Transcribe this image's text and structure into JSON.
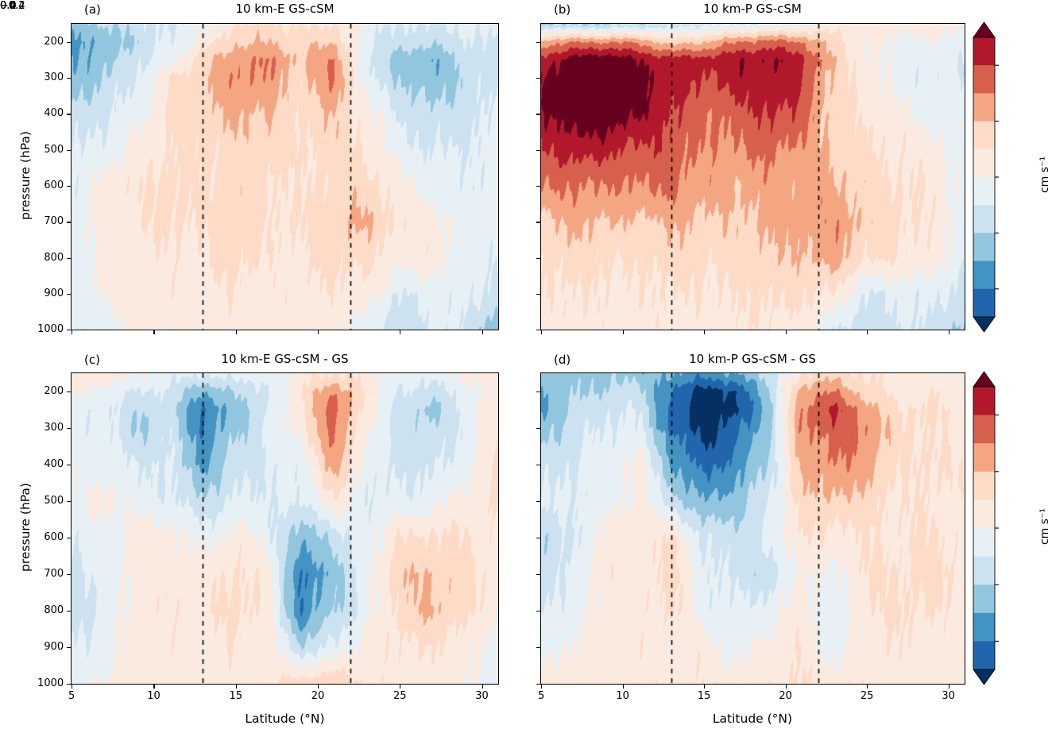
{
  "figure": {
    "background": "#ffffff",
    "xlabel": "Latitude (°N)",
    "ylabel": "pressure (hPa)"
  },
  "chart_data": {
    "type": "heatmap",
    "description": "Four filled-contour latitude-pressure cross sections of vertical velocity (cm/s), RdBu_r colormap, levels every 0.1 from -0.5 to 0.5 with extend=both",
    "xlabel": "Latitude (°N)",
    "ylabel": "pressure (hPa)",
    "xlim": [
      5,
      31
    ],
    "ylim_pressure": [
      150,
      1000
    ],
    "xticks": {
      "values": [
        5,
        10,
        15,
        20,
        25,
        30
      ],
      "labels": [
        "5",
        "10",
        "15",
        "20",
        "25",
        "30"
      ]
    },
    "yticks": {
      "values": [
        200,
        300,
        400,
        500,
        600,
        700,
        800,
        900,
        1000
      ],
      "labels": [
        "200",
        "300",
        "400",
        "500",
        "600",
        "700",
        "800",
        "900",
        "1000"
      ]
    },
    "levels": [
      -0.5,
      -0.4,
      -0.3,
      -0.2,
      -0.1,
      0.0,
      0.1,
      0.2,
      0.3,
      0.4,
      0.5
    ],
    "colors": {
      "under": "#053061",
      "bins": [
        "#2166ac",
        "#4393c3",
        "#92c5de",
        "#cde2f0",
        "#e7f0f5",
        "#fbeae0",
        "#fddbc7",
        "#f4a582",
        "#d6604d",
        "#b2182b"
      ],
      "over": "#67001f",
      "dashed_line": "#000000"
    },
    "colorbar": {
      "label": "cm s⁻¹",
      "tick_values": [
        0.4,
        0.2,
        0.0,
        -0.2,
        -0.4
      ],
      "tick_labels": [
        "0.4",
        "0.2",
        "0.0",
        "−0.2",
        "−0.4"
      ]
    },
    "grid_x_lats": [
      5,
      7,
      9,
      11,
      13,
      15,
      17,
      19,
      21,
      23,
      25,
      27,
      29,
      31
    ],
    "grid_y_pressures": [
      150,
      200,
      250,
      300,
      400,
      500,
      600,
      700,
      800,
      900,
      1000
    ],
    "panels": [
      {
        "id": "a",
        "label": "(a)",
        "title": "10 km-E GS-cSM",
        "dashed_lines_lat": [
          13,
          22
        ],
        "show_x_tick_labels": false,
        "show_y_tick_labels": true,
        "grid": [
          [
            -0.25,
            -0.2,
            -0.15,
            -0.1,
            -0.05,
            0.1,
            0.12,
            0.08,
            0.1,
            -0.05,
            -0.1,
            -0.1,
            -0.08,
            -0.05
          ],
          [
            -0.3,
            -0.28,
            -0.18,
            -0.08,
            0.05,
            0.18,
            0.2,
            0.15,
            0.2,
            -0.08,
            -0.15,
            -0.18,
            -0.12,
            -0.1
          ],
          [
            -0.3,
            -0.25,
            -0.12,
            -0.05,
            0.15,
            0.28,
            0.3,
            0.18,
            0.3,
            -0.1,
            -0.25,
            -0.3,
            -0.15,
            -0.12
          ],
          [
            -0.28,
            -0.2,
            -0.1,
            0.1,
            0.18,
            0.3,
            0.28,
            0.15,
            0.32,
            -0.08,
            -0.2,
            -0.28,
            -0.18,
            -0.1
          ],
          [
            -0.18,
            -0.12,
            -0.05,
            0.12,
            0.15,
            0.22,
            0.2,
            0.12,
            0.2,
            0.05,
            -0.12,
            -0.18,
            -0.15,
            -0.08
          ],
          [
            -0.12,
            -0.05,
            0.05,
            0.1,
            0.12,
            0.15,
            0.15,
            0.1,
            0.15,
            0.08,
            -0.05,
            -0.1,
            -0.1,
            -0.05
          ],
          [
            -0.08,
            0.05,
            0.08,
            0.15,
            0.1,
            0.15,
            0.12,
            0.08,
            0.15,
            0.15,
            0.05,
            -0.05,
            -0.08,
            -0.05
          ],
          [
            -0.05,
            0.05,
            0.08,
            0.12,
            0.1,
            0.18,
            0.1,
            0.1,
            0.18,
            0.22,
            0.08,
            0.05,
            -0.05,
            -0.05
          ],
          [
            -0.05,
            0.05,
            0.05,
            0.08,
            0.08,
            0.15,
            0.08,
            0.08,
            0.15,
            0.12,
            0.05,
            0.05,
            -0.05,
            -0.08
          ],
          [
            -0.08,
            0.03,
            0.05,
            0.05,
            0.05,
            0.08,
            0.05,
            0.05,
            0.08,
            0.05,
            -0.1,
            -0.05,
            -0.05,
            -0.15
          ],
          [
            -0.1,
            -0.05,
            0.03,
            0.03,
            0.05,
            0.05,
            0.05,
            0.05,
            0.05,
            -0.05,
            -0.2,
            -0.08,
            -0.1,
            -0.3
          ]
        ]
      },
      {
        "id": "b",
        "label": "(b)",
        "title": "10 km-P GS-cSM",
        "dashed_lines_lat": [
          13,
          22
        ],
        "show_x_tick_labels": false,
        "show_y_tick_labels": false,
        "grid": [
          [
            -0.2,
            -0.22,
            -0.2,
            -0.18,
            -0.15,
            -0.12,
            -0.1,
            -0.08,
            -0.05,
            0.05,
            0.05,
            0.05,
            0.05,
            0.02
          ],
          [
            0.25,
            0.3,
            0.3,
            0.28,
            0.15,
            0.2,
            0.3,
            0.35,
            0.3,
            0.15,
            0.02,
            -0.02,
            -0.02,
            -0.05
          ],
          [
            0.45,
            0.55,
            0.6,
            0.5,
            0.45,
            0.45,
            0.48,
            0.5,
            0.45,
            0.18,
            0.02,
            -0.05,
            -0.05,
            -0.08
          ],
          [
            0.5,
            0.62,
            0.65,
            0.55,
            0.45,
            0.4,
            0.45,
            0.48,
            0.42,
            0.15,
            0.05,
            -0.05,
            -0.08,
            -0.08
          ],
          [
            0.48,
            0.58,
            0.6,
            0.5,
            0.42,
            0.3,
            0.35,
            0.42,
            0.35,
            0.15,
            0.08,
            0.02,
            -0.05,
            -0.05
          ],
          [
            0.38,
            0.45,
            0.42,
            0.38,
            0.38,
            0.28,
            0.3,
            0.32,
            0.28,
            0.18,
            0.12,
            0.08,
            0.05,
            -0.05
          ],
          [
            0.3,
            0.32,
            0.3,
            0.3,
            0.32,
            0.25,
            0.22,
            0.25,
            0.25,
            0.22,
            0.15,
            0.1,
            0.08,
            -0.05
          ],
          [
            0.18,
            0.22,
            0.2,
            0.18,
            0.22,
            0.18,
            0.18,
            0.22,
            0.25,
            0.28,
            0.18,
            0.12,
            0.08,
            -0.05
          ],
          [
            0.12,
            0.15,
            0.12,
            0.1,
            0.15,
            0.12,
            0.15,
            0.18,
            0.2,
            0.25,
            0.12,
            0.1,
            0.05,
            -0.08
          ],
          [
            0.08,
            0.1,
            0.08,
            0.08,
            0.1,
            0.08,
            0.1,
            0.12,
            0.12,
            0.08,
            -0.1,
            -0.08,
            -0.05,
            -0.15
          ],
          [
            0.05,
            0.08,
            0.05,
            0.05,
            0.08,
            0.05,
            0.08,
            0.08,
            0.05,
            -0.08,
            -0.18,
            -0.1,
            -0.12,
            -0.25
          ]
        ]
      },
      {
        "id": "c",
        "label": "(c)",
        "title": "10 km-E GS-cSM - GS",
        "dashed_lines_lat": [
          13,
          22
        ],
        "show_x_tick_labels": true,
        "show_y_tick_labels": true,
        "grid": [
          [
            0.08,
            0.05,
            0.02,
            -0.05,
            -0.08,
            -0.05,
            -0.05,
            0.05,
            0.1,
            0.05,
            -0.05,
            -0.05,
            0.02,
            0.08
          ],
          [
            0.05,
            -0.05,
            -0.1,
            -0.12,
            -0.3,
            -0.18,
            -0.12,
            0.1,
            0.3,
            0.08,
            -0.1,
            -0.15,
            -0.05,
            0.05
          ],
          [
            -0.05,
            -0.08,
            -0.18,
            -0.15,
            -0.42,
            -0.25,
            -0.1,
            0.08,
            0.38,
            0.05,
            -0.12,
            -0.25,
            -0.05,
            0.08
          ],
          [
            -0.08,
            -0.05,
            -0.22,
            -0.12,
            -0.4,
            -0.22,
            -0.08,
            0.05,
            0.35,
            0.02,
            -0.15,
            -0.18,
            -0.08,
            0.1
          ],
          [
            -0.05,
            -0.05,
            -0.1,
            -0.1,
            -0.32,
            -0.15,
            -0.1,
            -0.05,
            0.25,
            -0.05,
            -0.12,
            -0.12,
            -0.05,
            0.12
          ],
          [
            -0.05,
            0.05,
            -0.05,
            -0.08,
            -0.18,
            -0.08,
            -0.08,
            -0.1,
            0.08,
            -0.08,
            -0.08,
            -0.05,
            0.05,
            0.1
          ],
          [
            -0.08,
            -0.05,
            0.05,
            0.05,
            -0.05,
            0.05,
            -0.05,
            -0.3,
            -0.15,
            -0.05,
            0.1,
            0.12,
            0.1,
            0.05
          ],
          [
            -0.12,
            -0.05,
            0.05,
            0.05,
            0.05,
            0.12,
            0.05,
            -0.42,
            -0.25,
            -0.05,
            0.18,
            0.2,
            0.15,
            0.05
          ],
          [
            -0.15,
            -0.08,
            0.05,
            0.08,
            0.05,
            0.15,
            0.05,
            -0.4,
            -0.2,
            -0.05,
            0.15,
            0.22,
            0.12,
            0.02
          ],
          [
            -0.1,
            -0.05,
            0.05,
            0.05,
            0.05,
            0.08,
            0.05,
            -0.18,
            -0.08,
            0.05,
            0.08,
            0.1,
            0.05,
            -0.05
          ],
          [
            -0.05,
            0.02,
            0.05,
            0.05,
            0.05,
            0.05,
            0.08,
            0.15,
            0.18,
            0.08,
            0.05,
            0.05,
            0.02,
            -0.05
          ]
        ]
      },
      {
        "id": "d",
        "label": "(d)",
        "title": "10 km-P GS-cSM - GS",
        "dashed_lines_lat": [
          13,
          22
        ],
        "show_x_tick_labels": true,
        "show_y_tick_labels": false,
        "grid": [
          [
            -0.22,
            -0.25,
            -0.22,
            -0.25,
            -0.3,
            -0.35,
            -0.3,
            -0.15,
            0.1,
            0.15,
            0.08,
            0.05,
            0.05,
            0.02
          ],
          [
            -0.28,
            -0.22,
            -0.18,
            -0.15,
            -0.42,
            -0.55,
            -0.5,
            -0.2,
            0.25,
            0.3,
            0.15,
            0.05,
            0.08,
            0.05
          ],
          [
            -0.32,
            -0.18,
            -0.12,
            -0.1,
            -0.45,
            -0.58,
            -0.52,
            -0.25,
            0.3,
            0.42,
            0.25,
            0.1,
            0.12,
            0.05
          ],
          [
            -0.25,
            -0.15,
            -0.08,
            -0.08,
            -0.4,
            -0.55,
            -0.45,
            -0.22,
            0.3,
            0.35,
            0.3,
            0.12,
            0.1,
            0.05
          ],
          [
            -0.15,
            -0.1,
            -0.05,
            0.05,
            -0.3,
            -0.45,
            -0.35,
            -0.18,
            0.22,
            0.3,
            0.25,
            0.1,
            0.12,
            0.08
          ],
          [
            -0.1,
            -0.08,
            -0.05,
            0.05,
            -0.15,
            -0.3,
            -0.25,
            -0.1,
            0.15,
            0.2,
            0.15,
            0.08,
            0.1,
            0.05
          ],
          [
            -0.18,
            -0.12,
            0.05,
            0.05,
            0.1,
            -0.12,
            -0.15,
            -0.08,
            0.1,
            0.05,
            0.1,
            0.08,
            0.12,
            0.05
          ],
          [
            -0.15,
            -0.08,
            0.08,
            0.05,
            0.15,
            -0.08,
            -0.12,
            -0.18,
            0.05,
            -0.05,
            0.12,
            0.1,
            0.15,
            0.08
          ],
          [
            -0.08,
            -0.05,
            0.05,
            0.05,
            0.12,
            -0.05,
            -0.08,
            -0.05,
            0.05,
            -0.08,
            0.08,
            0.12,
            0.1,
            0.05
          ],
          [
            -0.05,
            0.02,
            0.05,
            0.05,
            0.05,
            0.05,
            -0.05,
            0.05,
            0.08,
            -0.05,
            0.05,
            0.08,
            0.05,
            0.02
          ],
          [
            0.02,
            0.05,
            0.05,
            0.08,
            0.05,
            0.08,
            0.05,
            0.08,
            0.1,
            0.05,
            0.08,
            0.05,
            0.05,
            0.05
          ]
        ]
      }
    ]
  }
}
